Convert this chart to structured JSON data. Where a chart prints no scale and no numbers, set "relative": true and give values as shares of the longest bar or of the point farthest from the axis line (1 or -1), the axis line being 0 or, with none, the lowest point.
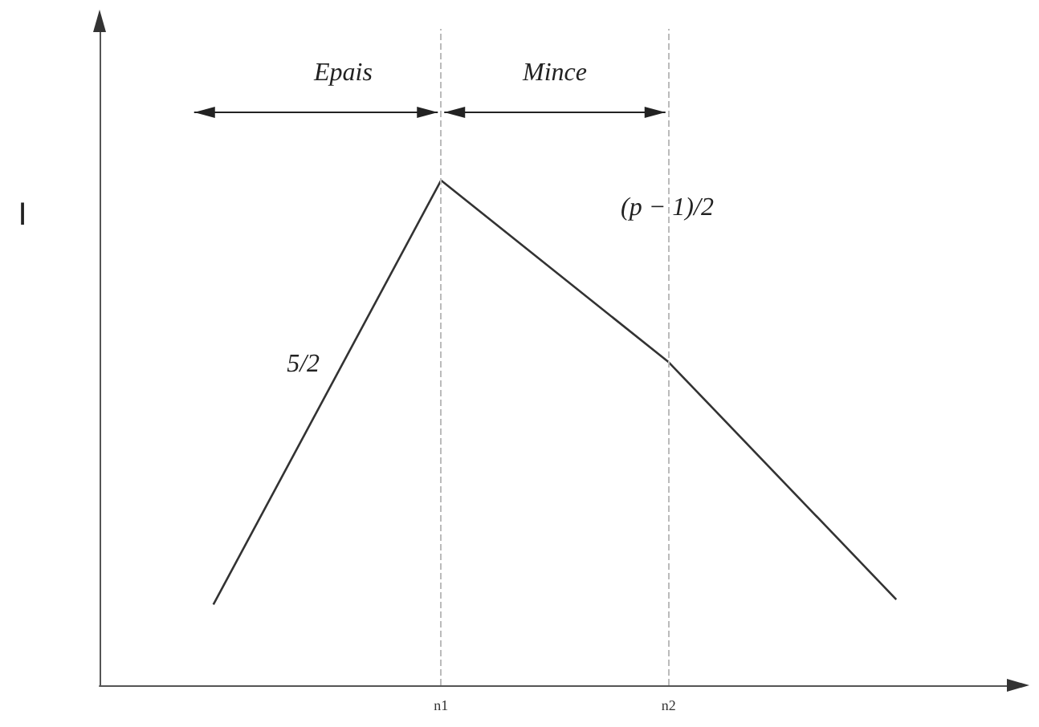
{
  "chart_data": {
    "type": "line",
    "relative": true,
    "ylabel": "I",
    "categories": [
      null,
      "n1",
      "n2",
      null
    ],
    "series": [
      {
        "color": "#333333",
        "values": [
          0.16,
          1,
          0.64,
          0.17
        ]
      }
    ],
    "ref_lines": [
      {
        "axis": "x",
        "value": "n1",
        "color": "#bbbbbb",
        "line_style": "dashed"
      },
      {
        "axis": "x",
        "value": "n2",
        "color": "#bbbbbb",
        "line_style": "dashed"
      }
    ],
    "annotations": [
      "Epais",
      "Mince",
      "5/2",
      "(p − 1)/2"
    ],
    "marker": "none",
    "line_style": "solid",
    "grid": false
  }
}
